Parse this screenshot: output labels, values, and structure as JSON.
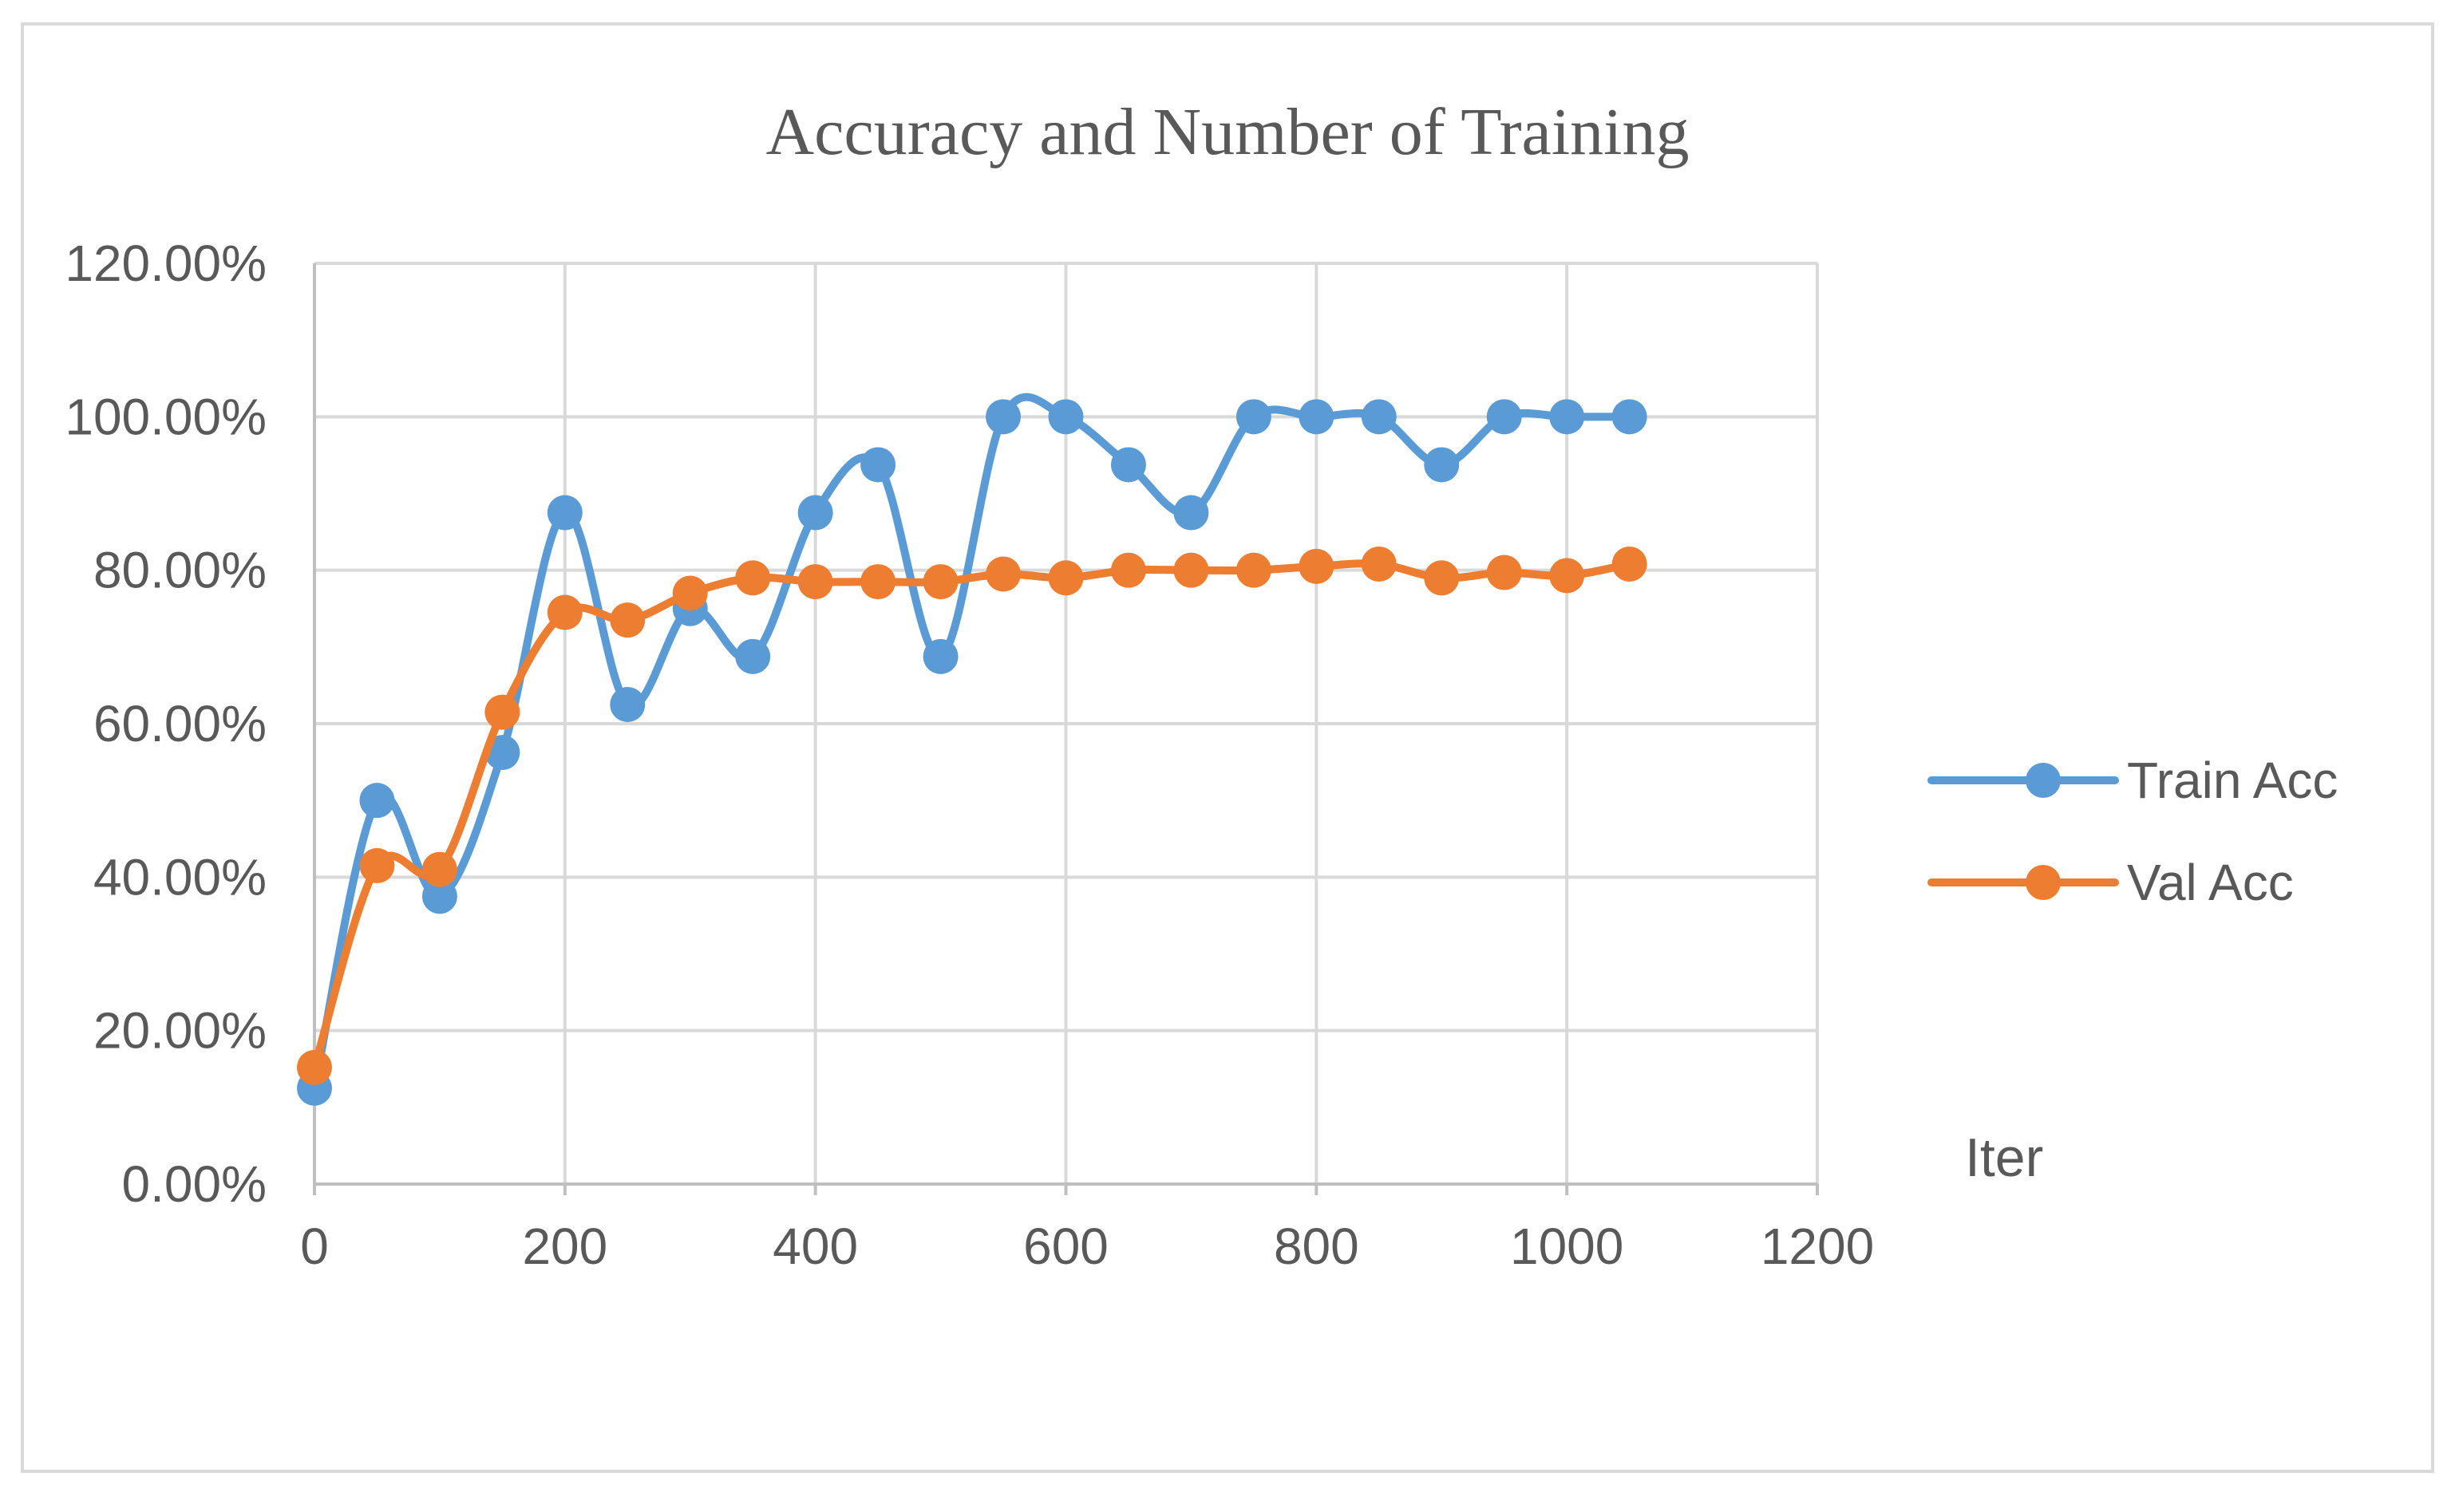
{
  "chart_data": {
    "type": "line",
    "smooth": true,
    "title": "Accuracy and Number of Training",
    "xlabel": "Iter",
    "ylabel": "",
    "xlim": [
      0,
      1200
    ],
    "ylim": [
      0,
      1.2
    ],
    "x_ticks": [
      0,
      200,
      400,
      600,
      800,
      1000,
      1200
    ],
    "y_ticks": [
      0,
      0.2,
      0.4,
      0.6,
      0.8,
      1.0,
      1.2
    ],
    "x_tick_labels": [
      "0",
      "200",
      "400",
      "600",
      "800",
      "1000",
      "1200"
    ],
    "y_tick_labels": [
      "0.00%",
      "20.00%",
      "40.00%",
      "60.00%",
      "80.00%",
      "100.00%",
      "120.00%"
    ],
    "grid": true,
    "legend_position": "right",
    "x": [
      0,
      50,
      100,
      150,
      200,
      250,
      300,
      350,
      400,
      450,
      500,
      550,
      600,
      650,
      700,
      750,
      800,
      850,
      900,
      950,
      1000,
      1050
    ],
    "series": [
      {
        "name": "Train Acc",
        "color": "#5B9BD5",
        "values": [
          0.125,
          0.5,
          0.375,
          0.5625,
          0.875,
          0.625,
          0.75,
          0.6875,
          0.875,
          0.9375,
          0.6875,
          1.0,
          1.0,
          0.9375,
          0.875,
          1.0,
          1.0,
          1.0,
          0.9375,
          1.0,
          1.0,
          1.0
        ]
      },
      {
        "name": "Val Acc",
        "color": "#ED7D31",
        "values": [
          0.152,
          0.415,
          0.41,
          0.615,
          0.745,
          0.735,
          0.77,
          0.79,
          0.785,
          0.785,
          0.785,
          0.795,
          0.79,
          0.8,
          0.8,
          0.8,
          0.805,
          0.808,
          0.79,
          0.797,
          0.793,
          0.808
        ]
      }
    ]
  }
}
